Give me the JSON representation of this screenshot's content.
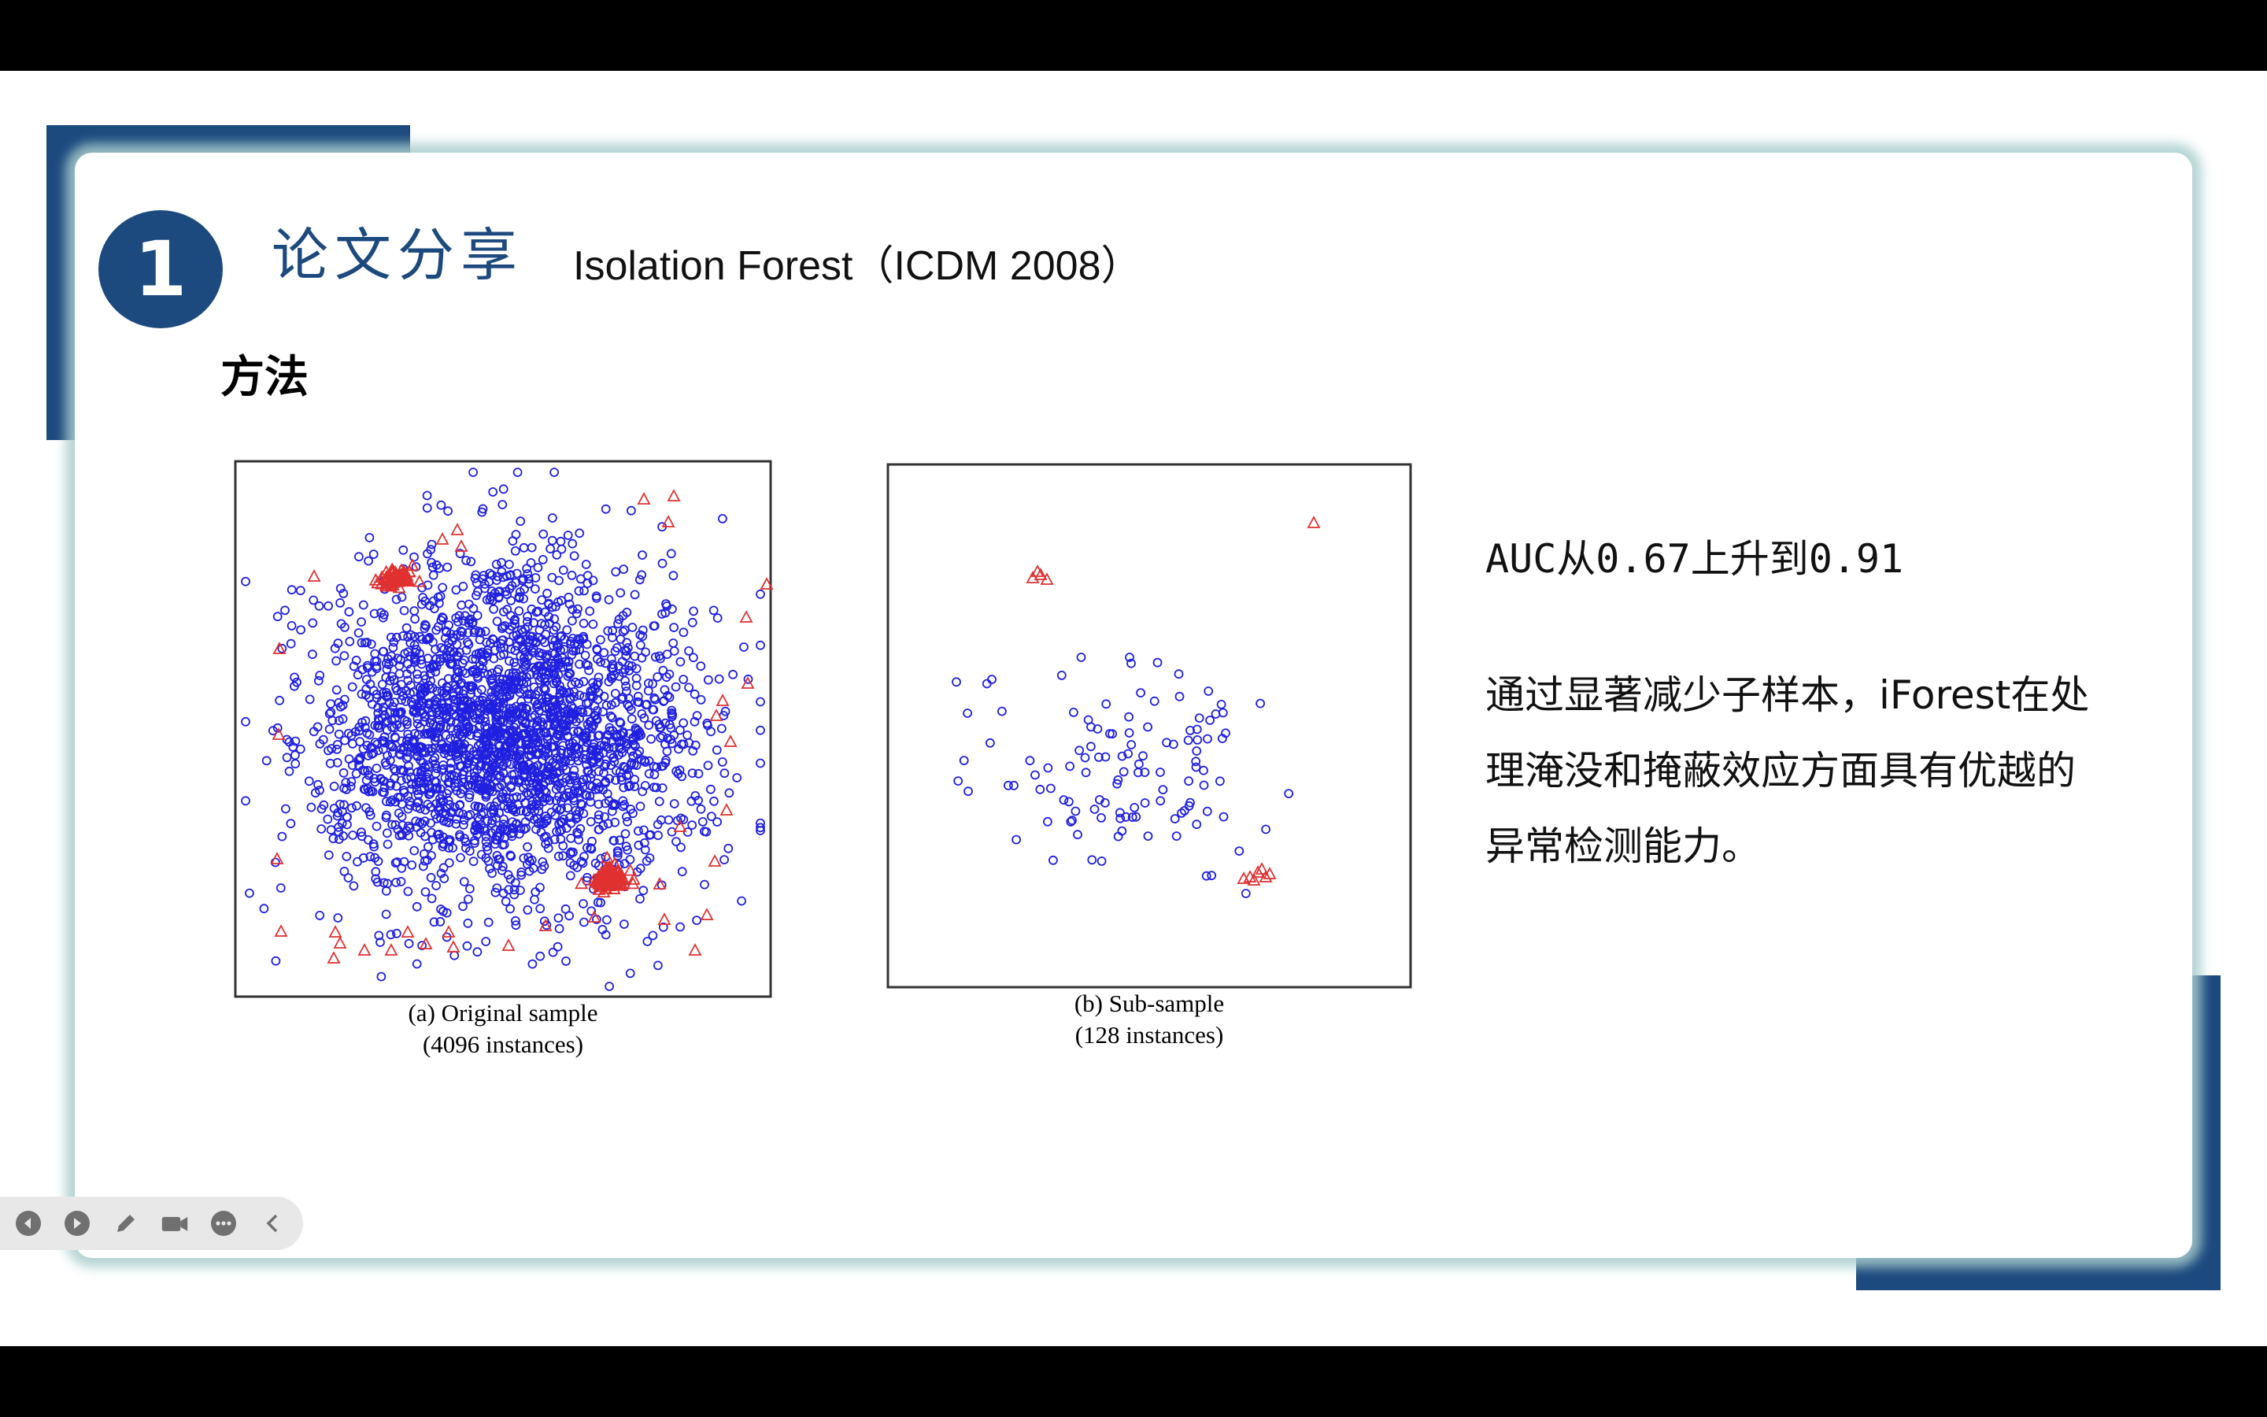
{
  "slide": {
    "number": "1",
    "title_zh": "论文分享",
    "title_en": "Isolation Forest（ICDM 2008）",
    "section_heading": "方法",
    "auc_text": "AUC从0.67上升到0.91",
    "description": "通过显著减少子样本，iForest在处理淹没和掩蔽效应方面具有优越的异常检测能力。"
  },
  "figures": [
    {
      "caption_line1": "(a) Original sample",
      "caption_line2": "(4096 instances)"
    },
    {
      "caption_line1": "(b) Sub-sample",
      "caption_line2": "(128 instances)"
    }
  ],
  "colors": {
    "brand_blue": "#1c4a7e",
    "normal_points": "#2020e0",
    "anomaly_points": "#e03030",
    "card_shadow": "#a8cdcd"
  },
  "toolbar": {
    "items": [
      "prev-icon",
      "next-icon",
      "pen-icon",
      "camera-icon",
      "more-icon",
      "collapse-icon"
    ]
  }
}
